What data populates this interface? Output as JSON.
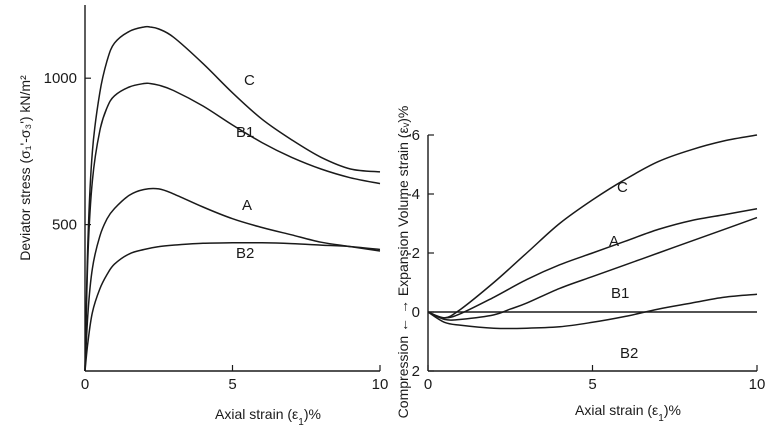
{
  "chart_data": [
    {
      "type": "line",
      "title": "",
      "xlabel_prefix": "Axial strain (ε",
      "xlabel_sub": "1",
      "xlabel_suffix": ")%",
      "ylabel": "Deviator stress (σ₁'-σ₃') kN/m²",
      "xlim": [
        0,
        10
      ],
      "ylim": [
        0,
        1250
      ],
      "xticks": [
        "0",
        "5",
        "10"
      ],
      "yticks": [
        "500",
        "1000"
      ],
      "grid": false,
      "series": [
        {
          "name": "C",
          "x": [
            0,
            0.1,
            0.25,
            0.5,
            0.75,
            1,
            1.5,
            2,
            2.2,
            2.5,
            3,
            4,
            5,
            6,
            7,
            8,
            9,
            10
          ],
          "y": [
            0,
            450,
            750,
            950,
            1060,
            1120,
            1160,
            1175,
            1175,
            1168,
            1140,
            1050,
            950,
            860,
            790,
            730,
            690,
            680
          ]
        },
        {
          "name": "B1",
          "x": [
            0,
            0.1,
            0.25,
            0.5,
            0.75,
            1,
            1.5,
            2,
            2.2,
            2.5,
            3,
            4,
            5,
            6,
            7,
            8,
            9,
            10
          ],
          "y": [
            0,
            400,
            650,
            820,
            900,
            940,
            970,
            982,
            982,
            976,
            958,
            905,
            840,
            780,
            730,
            690,
            660,
            640
          ]
        },
        {
          "name": "A",
          "x": [
            0,
            0.1,
            0.25,
            0.5,
            0.75,
            1,
            1.5,
            2,
            2.5,
            3,
            4,
            5,
            6,
            7,
            8,
            9,
            10
          ],
          "y": [
            0,
            200,
            350,
            460,
            520,
            555,
            600,
            620,
            622,
            605,
            560,
            520,
            490,
            465,
            440,
            425,
            410
          ]
        },
        {
          "name": "B2",
          "x": [
            0,
            0.1,
            0.25,
            0.5,
            0.75,
            1,
            1.5,
            2,
            2.5,
            3,
            4,
            5,
            6,
            7,
            8,
            9,
            10
          ],
          "y": [
            0,
            100,
            200,
            280,
            330,
            365,
            400,
            415,
            425,
            430,
            436,
            438,
            438,
            435,
            430,
            425,
            415
          ]
        }
      ]
    },
    {
      "type": "line",
      "title": "",
      "xlabel_prefix": "Axial strain (ε",
      "xlabel_sub": "1",
      "xlabel_suffix": ")%",
      "ylabel": "Compression ← → Expansion   Volume strain (εᵥ)%",
      "xlim": [
        0,
        10
      ],
      "ylim": [
        2,
        -6
      ],
      "xticks": [
        "0",
        "5",
        "10"
      ],
      "yticks": [
        "2",
        "0",
        "-2",
        "-4",
        "-6"
      ],
      "grid": false,
      "series": [
        {
          "name": "C",
          "x": [
            0,
            0.5,
            1,
            2,
            3,
            4,
            5,
            6,
            7,
            8,
            9,
            10
          ],
          "y": [
            0,
            0.2,
            -0.1,
            -1.0,
            -2.0,
            -3.0,
            -3.8,
            -4.5,
            -5.1,
            -5.5,
            -5.8,
            -6.0
          ]
        },
        {
          "name": "A",
          "x": [
            0,
            0.5,
            1,
            2,
            3,
            4,
            5,
            6,
            7,
            8,
            9,
            10
          ],
          "y": [
            0,
            0.2,
            0.05,
            -0.5,
            -1.1,
            -1.6,
            -2.0,
            -2.4,
            -2.8,
            -3.1,
            -3.3,
            -3.5
          ]
        },
        {
          "name": "B1",
          "x": [
            0,
            0.5,
            1,
            2,
            2.5,
            3,
            4,
            5,
            6,
            7,
            8,
            9,
            10
          ],
          "y": [
            0,
            0.25,
            0.25,
            0.1,
            -0.1,
            -0.3,
            -0.8,
            -1.2,
            -1.6,
            -2.0,
            -2.4,
            -2.8,
            -3.2
          ]
        },
        {
          "name": "B2",
          "x": [
            0,
            0.5,
            1,
            2,
            3,
            4,
            5,
            6,
            7,
            8,
            9,
            10
          ],
          "y": [
            0,
            0.35,
            0.45,
            0.55,
            0.55,
            0.5,
            0.35,
            0.15,
            -0.1,
            -0.3,
            -0.5,
            -0.6
          ]
        }
      ],
      "reference_line": {
        "y": 0
      }
    }
  ]
}
